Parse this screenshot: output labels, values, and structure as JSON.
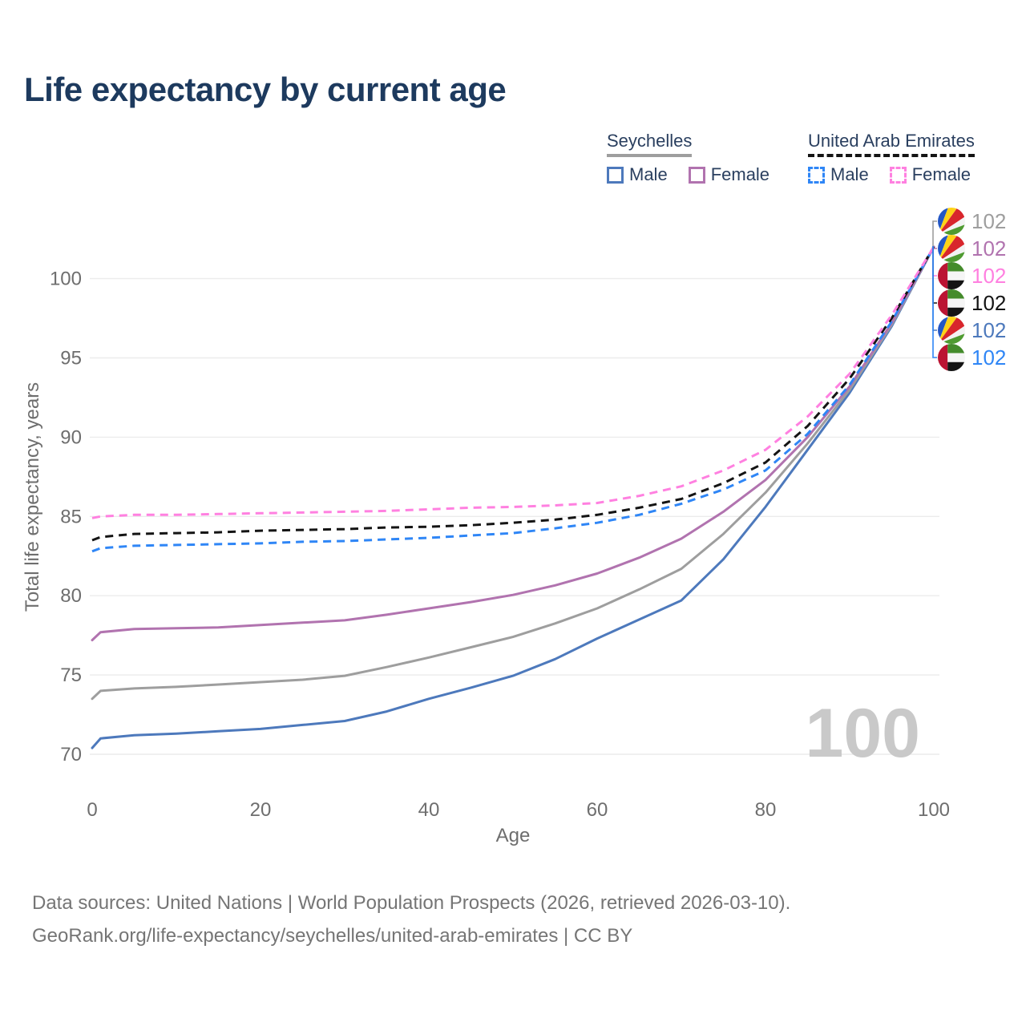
{
  "title": "Life expectancy by current age",
  "watermark": "100",
  "legend": {
    "groups": [
      {
        "label": "Seychelles",
        "underline_style": "solid",
        "underline_color": "#9e9e9e",
        "items": [
          {
            "label": "Male",
            "color": "#4d79bc",
            "dashed": false
          },
          {
            "label": "Female",
            "color": "#b173af",
            "dashed": false
          }
        ]
      },
      {
        "label": "United Arab Emirates",
        "underline_style": "dashed",
        "underline_color": "#141414",
        "items": [
          {
            "label": "Male",
            "color": "#2f86f6",
            "dashed": true
          },
          {
            "label": "Female",
            "color": "#ff80e0",
            "dashed": true
          }
        ]
      }
    ]
  },
  "footer": {
    "line1": "Data sources: United Nations | World Population Prospects (2026, retrieved 2026-03-10).",
    "line2": "GeoRank.org/life-expectancy/seychelles/united-arab-emirates | CC BY"
  },
  "chart_data": {
    "type": "line",
    "title": "Life expectancy by current age",
    "xlabel": "Age",
    "ylabel": "Total life expectancy, years",
    "xlim": [
      0,
      100
    ],
    "ylim": [
      70,
      102
    ],
    "x_ticks": [
      0,
      20,
      40,
      60,
      80,
      100
    ],
    "y_ticks": [
      70,
      75,
      80,
      85,
      90,
      95,
      100
    ],
    "grid": true,
    "legend_position": "top-right",
    "hover_age": "100",
    "x": [
      0,
      1,
      5,
      10,
      15,
      20,
      25,
      30,
      35,
      40,
      45,
      50,
      55,
      60,
      65,
      70,
      75,
      80,
      85,
      90,
      95,
      100
    ],
    "series": [
      {
        "id": "seychelles-male",
        "country": "Seychelles",
        "sex": "Male",
        "color": "#4d79bc",
        "dashed": false,
        "flag": "sc",
        "label_row": 4,
        "end_label": "102",
        "values": [
          70.4,
          71.0,
          71.2,
          71.3,
          71.45,
          71.6,
          71.85,
          72.1,
          72.7,
          73.5,
          74.2,
          74.95,
          76.0,
          77.3,
          78.5,
          79.7,
          82.3,
          85.6,
          89.2,
          92.8,
          97.0,
          102
        ]
      },
      {
        "id": "seychelles-all",
        "country": "Seychelles",
        "sex": "Both",
        "color": "#9e9e9e",
        "dashed": false,
        "flag": "sc",
        "label_row": 0,
        "end_label": "102",
        "values": [
          73.5,
          74.0,
          74.15,
          74.25,
          74.4,
          74.55,
          74.7,
          74.95,
          75.5,
          76.1,
          76.75,
          77.4,
          78.25,
          79.2,
          80.4,
          81.7,
          83.9,
          86.5,
          89.6,
          93.0,
          97.1,
          102
        ]
      },
      {
        "id": "seychelles-female",
        "country": "Seychelles",
        "sex": "Female",
        "color": "#b173af",
        "dashed": false,
        "flag": "sc",
        "label_row": 1,
        "end_label": "102",
        "values": [
          77.2,
          77.7,
          77.9,
          77.95,
          78.0,
          78.15,
          78.3,
          78.45,
          78.8,
          79.2,
          79.6,
          80.05,
          80.65,
          81.4,
          82.4,
          83.6,
          85.3,
          87.3,
          90.0,
          93.2,
          97.2,
          102
        ]
      },
      {
        "id": "uae-male",
        "country": "United Arab Emirates",
        "sex": "Male",
        "color": "#2f86f6",
        "dashed": true,
        "flag": "uae",
        "label_row": 5,
        "end_label": "102",
        "values": [
          82.8,
          83.0,
          83.15,
          83.2,
          83.25,
          83.3,
          83.4,
          83.45,
          83.55,
          83.65,
          83.8,
          83.95,
          84.25,
          84.6,
          85.1,
          85.8,
          86.7,
          87.9,
          90.2,
          93.3,
          97.3,
          102
        ]
      },
      {
        "id": "uae-all",
        "country": "United Arab Emirates",
        "sex": "Both",
        "color": "#141414",
        "dashed": true,
        "flag": "uae",
        "label_row": 3,
        "end_label": "102",
        "values": [
          83.5,
          83.7,
          83.9,
          83.95,
          84.0,
          84.1,
          84.15,
          84.2,
          84.3,
          84.35,
          84.45,
          84.6,
          84.8,
          85.1,
          85.55,
          86.1,
          87.1,
          88.4,
          90.7,
          93.7,
          97.5,
          102
        ]
      },
      {
        "id": "uae-female",
        "country": "United Arab Emirates",
        "sex": "Female",
        "color": "#ff80e0",
        "dashed": true,
        "flag": "uae",
        "label_row": 2,
        "end_label": "102",
        "values": [
          84.9,
          85.0,
          85.1,
          85.1,
          85.15,
          85.2,
          85.25,
          85.3,
          85.35,
          85.45,
          85.55,
          85.6,
          85.7,
          85.85,
          86.3,
          86.9,
          87.9,
          89.2,
          91.3,
          94.0,
          97.7,
          102
        ]
      }
    ],
    "flag_colors": {
      "sc": {
        "blue": "#2357c5",
        "yellow": "#ffd317",
        "red": "#d8262c",
        "white": "#f3f3f3",
        "green": "#4f9b31"
      },
      "uae": {
        "red": "#bb1433",
        "green": "#448b2b",
        "white": "#f5f5f5",
        "black": "#141414"
      }
    }
  }
}
